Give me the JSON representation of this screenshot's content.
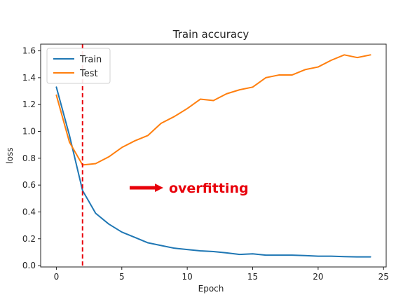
{
  "chart_data": {
    "type": "line",
    "title": "Train accuracy",
    "xlabel": "Epoch",
    "ylabel": "loss",
    "xlim": [
      -1.2,
      25.2
    ],
    "ylim": [
      -0.01,
      1.65
    ],
    "xticks": [
      0,
      5,
      10,
      15,
      20,
      25
    ],
    "yticks": [
      0.0,
      0.2,
      0.4,
      0.6,
      0.8,
      1.0,
      1.2,
      1.4,
      1.6
    ],
    "ytick_labels": [
      "0.0",
      "0.2",
      "0.4",
      "0.6",
      "0.8",
      "1.0",
      "1.2",
      "1.4",
      "1.6"
    ],
    "grid": false,
    "legend_position": "top-left",
    "x": [
      0,
      1,
      2,
      3,
      4,
      5,
      6,
      7,
      8,
      9,
      10,
      11,
      12,
      13,
      14,
      15,
      16,
      17,
      18,
      19,
      20,
      21,
      22,
      23,
      24
    ],
    "series": [
      {
        "name": "Train",
        "color": "#1f77b4",
        "values": [
          1.33,
          0.97,
          0.56,
          0.39,
          0.31,
          0.25,
          0.21,
          0.17,
          0.15,
          0.13,
          0.12,
          0.11,
          0.105,
          0.095,
          0.083,
          0.088,
          0.078,
          0.078,
          0.078,
          0.075,
          0.07,
          0.07,
          0.067,
          0.065,
          0.065
        ]
      },
      {
        "name": "Test",
        "color": "#ff7f0e",
        "values": [
          1.27,
          0.92,
          0.75,
          0.76,
          0.81,
          0.88,
          0.93,
          0.97,
          1.06,
          1.11,
          1.17,
          1.24,
          1.23,
          1.28,
          1.31,
          1.33,
          1.4,
          1.42,
          1.42,
          1.46,
          1.48,
          1.53,
          1.57,
          1.55,
          1.57
        ]
      }
    ],
    "annotations": [
      {
        "type": "vline",
        "x": 2,
        "color": "#e8000b",
        "style": "dashed"
      },
      {
        "type": "arrow-label",
        "text": "overfitting",
        "x": 5.6,
        "y": 0.58,
        "color": "#e8000b"
      }
    ]
  }
}
